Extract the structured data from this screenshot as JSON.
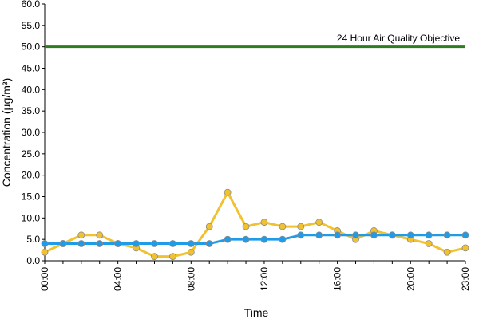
{
  "chart_data": {
    "type": "line",
    "title": "",
    "xlabel": "Time",
    "ylabel": "Concentration (µg/m³)",
    "ylim": [
      0,
      60
    ],
    "yticks": [
      "0.0",
      "5.0",
      "10.0",
      "15.0",
      "20.0",
      "25.0",
      "30.0",
      "35.0",
      "40.0",
      "45.0",
      "50.0",
      "55.0",
      "60.0"
    ],
    "x": [
      "00:00",
      "01:00",
      "02:00",
      "03:00",
      "04:00",
      "05:00",
      "06:00",
      "07:00",
      "08:00",
      "09:00",
      "10:00",
      "11:00",
      "12:00",
      "13:00",
      "14:00",
      "15:00",
      "16:00",
      "17:00",
      "18:00",
      "19:00",
      "20:00",
      "21:00",
      "22:00",
      "23:00"
    ],
    "xticks_shown": [
      "00:00",
      "04:00",
      "08:00",
      "12:00",
      "16:00",
      "20:00",
      "23:00"
    ],
    "grid": false,
    "legend": "none",
    "series": [
      {
        "color": "#F2C12E",
        "values": [
          2,
          4,
          6,
          6,
          4,
          3,
          1,
          1,
          2,
          8,
          16,
          8,
          9,
          8,
          8,
          9,
          7,
          5,
          7,
          6,
          5,
          4,
          2,
          3
        ]
      },
      {
        "color": "#1E9BE9",
        "values": [
          4,
          4,
          4,
          4,
          4,
          4,
          4,
          4,
          4,
          4,
          5,
          5,
          5,
          5,
          6,
          6,
          6,
          6,
          6,
          6,
          6,
          6,
          6,
          6
        ]
      }
    ],
    "reference_line": {
      "value": 50,
      "label": "24 Hour Air Quality Objective",
      "color": "#2E7D1F"
    }
  }
}
